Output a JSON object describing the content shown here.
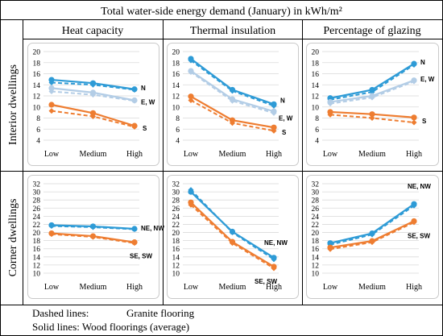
{
  "figure": {
    "title": "Total water-side energy demand (January) in kWh/m²",
    "columns": [
      "Heat capacity",
      "Thermal insulation",
      "Percentage of glazing"
    ],
    "rows": [
      "Interior dwellings",
      "Corner dwellings"
    ],
    "legend": {
      "dashed_prefix": "Dashed lines:",
      "dashed_text": "Granite flooring",
      "solid_text": "Solid lines: Wood floorings (average)"
    },
    "colors": {
      "N": "#2e9bd6",
      "EW": "#b3cde6",
      "S": "#ee7d31",
      "NE_NW": "#2e9bd6",
      "SE_SW": "#ee7d31",
      "frame": "#c9c9c9",
      "grid": "#d9d9d9"
    }
  },
  "chart_data": [
    {
      "type": "line",
      "panel": "interior-heat-capacity",
      "categories": [
        "Low",
        "Medium",
        "High"
      ],
      "ylim": [
        4,
        20
      ],
      "yticks": [
        4,
        6,
        8,
        10,
        12,
        14,
        16,
        18,
        20
      ],
      "series": [
        {
          "name": "N",
          "color": "N",
          "wood": [
            14.9,
            14.3,
            13.2
          ],
          "granite": [
            14.4,
            14.0,
            13.1
          ]
        },
        {
          "name": "E, W",
          "color": "EW",
          "wood": [
            13.4,
            12.6,
            11.2
          ],
          "granite": [
            12.8,
            12.2,
            11.1
          ]
        },
        {
          "name": "S",
          "color": "S",
          "wood": [
            10.4,
            8.9,
            6.6
          ],
          "granite": [
            9.3,
            8.3,
            6.4
          ]
        }
      ],
      "labels": [
        {
          "text": "N",
          "series": 0
        },
        {
          "text": "E, W",
          "series": 1
        },
        {
          "text": "S",
          "series": 2
        }
      ]
    },
    {
      "type": "line",
      "panel": "interior-thermal-insulation",
      "categories": [
        "Low",
        "Medium",
        "High"
      ],
      "ylim": [
        4,
        20
      ],
      "yticks": [
        4,
        6,
        8,
        10,
        12,
        14,
        16,
        18,
        20
      ],
      "series": [
        {
          "name": "N",
          "color": "N",
          "wood": [
            18.7,
            13.1,
            10.5
          ],
          "granite": [
            18.4,
            12.9,
            10.2
          ]
        },
        {
          "name": "E, W",
          "color": "EW",
          "wood": [
            16.5,
            11.4,
            9.2
          ],
          "granite": [
            16.3,
            11.1,
            8.9
          ]
        },
        {
          "name": "S",
          "color": "S",
          "wood": [
            11.9,
            7.6,
            6.3
          ],
          "granite": [
            11.2,
            7.1,
            5.7
          ]
        }
      ],
      "labels": [
        {
          "text": "N",
          "series": 0
        },
        {
          "text": "E, W",
          "series": 1
        },
        {
          "text": "S",
          "series": 2
        }
      ]
    },
    {
      "type": "line",
      "panel": "interior-percentage-of-glazing",
      "categories": [
        "Low",
        "Medium",
        "High"
      ],
      "ylim": [
        4,
        20
      ],
      "yticks": [
        4,
        6,
        8,
        10,
        12,
        14,
        16,
        18,
        20
      ],
      "series": [
        {
          "name": "N",
          "color": "N",
          "wood": [
            11.6,
            13.1,
            17.8
          ],
          "granite": [
            11.3,
            12.7,
            17.6
          ]
        },
        {
          "name": "E, W",
          "color": "EW",
          "wood": [
            10.9,
            12.0,
            14.8
          ],
          "granite": [
            10.6,
            11.7,
            14.6
          ]
        },
        {
          "name": "S",
          "color": "S",
          "wood": [
            9.1,
            8.7,
            8.1
          ],
          "granite": [
            8.6,
            8.0,
            7.2
          ]
        }
      ],
      "labels": [
        {
          "text": "N",
          "series": 0
        },
        {
          "text": "E, W",
          "series": 1
        },
        {
          "text": "S",
          "series": 2
        }
      ]
    },
    {
      "type": "line",
      "panel": "corner-heat-capacity",
      "categories": [
        "Low",
        "Medium",
        "High"
      ],
      "ylim": [
        10,
        32
      ],
      "yticks": [
        10,
        12,
        14,
        16,
        18,
        20,
        22,
        24,
        26,
        28,
        30,
        32
      ],
      "series": [
        {
          "name": "NE, NW",
          "color": "NE_NW",
          "wood": [
            21.8,
            21.5,
            20.9
          ],
          "granite": [
            21.6,
            21.3,
            20.8
          ]
        },
        {
          "name": "SE, SW",
          "color": "SE_SW",
          "wood": [
            19.8,
            19.1,
            17.6
          ],
          "granite": [
            19.6,
            18.9,
            17.4
          ]
        }
      ],
      "labels": [
        {
          "text": "NE, NW",
          "series": 0
        },
        {
          "text": "SE, SW",
          "series": 1
        }
      ]
    },
    {
      "type": "line",
      "panel": "corner-thermal-insulation",
      "categories": [
        "Low",
        "Medium",
        "High"
      ],
      "ylim": [
        10,
        32
      ],
      "yticks": [
        10,
        12,
        14,
        16,
        18,
        20,
        22,
        24,
        26,
        28,
        30,
        32
      ],
      "series": [
        {
          "name": "NE, NW",
          "color": "NE_NW",
          "wood": [
            30.0,
            20.2,
            13.8
          ],
          "granite": [
            30.5,
            20.0,
            13.4
          ]
        },
        {
          "name": "SE, SW",
          "color": "SE_SW",
          "wood": [
            27.4,
            17.7,
            11.6
          ],
          "granite": [
            26.8,
            17.4,
            11.2
          ]
        }
      ],
      "labels": [
        {
          "text": "NE, NW",
          "series": 0
        },
        {
          "text": "SE, SW",
          "series": 1
        }
      ]
    },
    {
      "type": "line",
      "panel": "corner-percentage-of-glazing",
      "categories": [
        "Low",
        "Medium",
        "High"
      ],
      "ylim": [
        10,
        32
      ],
      "yticks": [
        10,
        12,
        14,
        16,
        18,
        20,
        22,
        24,
        26,
        28,
        30,
        32
      ],
      "series": [
        {
          "name": "NE, NW",
          "color": "NE_NW",
          "wood": [
            17.4,
            19.8,
            27.0
          ],
          "granite": [
            17.0,
            19.5,
            26.6
          ]
        },
        {
          "name": "SE, SW",
          "color": "SE_SW",
          "wood": [
            16.3,
            17.9,
            22.8
          ],
          "granite": [
            15.9,
            17.6,
            22.5
          ]
        }
      ],
      "labels": [
        {
          "text": "NE, NW",
          "series": 0
        },
        {
          "text": "SE, SW",
          "series": 1
        }
      ]
    }
  ]
}
